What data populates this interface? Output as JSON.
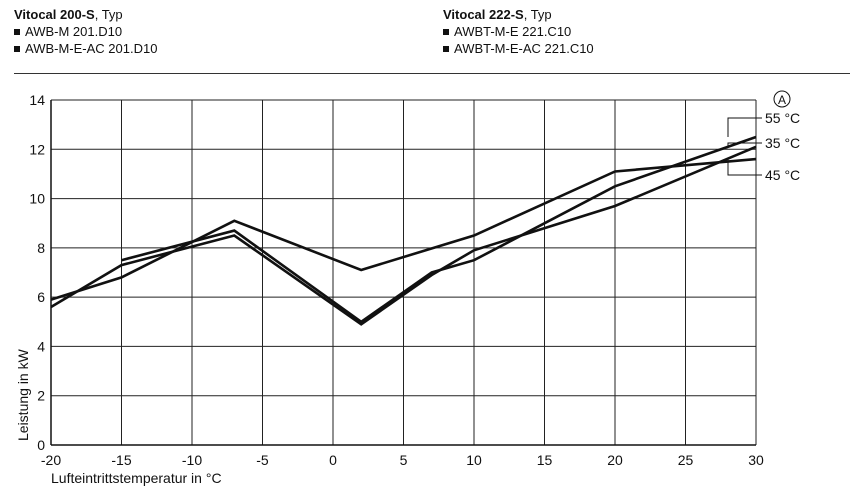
{
  "header": {
    "left": {
      "model": "Vitocal 200-S",
      "suffix": ", Typ",
      "items": [
        "AWB-M 201.D10",
        "AWB-M-E-AC 201.D10"
      ]
    },
    "right": {
      "model": "Vitocal 222-S",
      "suffix": ", Typ",
      "items": [
        "AWBT-M-E 221.C10",
        "AWBT-M-E-AC 221.C10"
      ]
    }
  },
  "chart_data": {
    "type": "line",
    "xlabel": "Lufteintrittstemperatur in °C",
    "ylabel": "Leistung in kW",
    "xlim": [
      -20,
      30
    ],
    "ylim": [
      0,
      14
    ],
    "xticks": [
      -20,
      -15,
      -10,
      -5,
      0,
      5,
      10,
      15,
      20,
      25,
      30
    ],
    "yticks": [
      0,
      2,
      4,
      6,
      8,
      10,
      12,
      14
    ],
    "grid": true,
    "legend_marker": "A",
    "series": [
      {
        "name": "55 °C",
        "x": [
          -15,
          -7,
          2,
          7,
          10,
          20,
          30
        ],
        "y": [
          7.5,
          8.7,
          5.0,
          7.0,
          7.5,
          10.5,
          12.5
        ]
      },
      {
        "name": "35 °C",
        "x": [
          -20,
          -15,
          -7,
          2,
          7,
          10,
          20,
          30
        ],
        "y": [
          5.6,
          7.3,
          8.5,
          4.9,
          6.9,
          7.9,
          9.7,
          12.1
        ]
      },
      {
        "name": "45 °C",
        "x": [
          -20,
          -15,
          -7,
          2,
          10,
          20,
          30
        ],
        "y": [
          5.9,
          6.8,
          9.1,
          7.1,
          8.5,
          11.1,
          11.6
        ]
      }
    ]
  }
}
